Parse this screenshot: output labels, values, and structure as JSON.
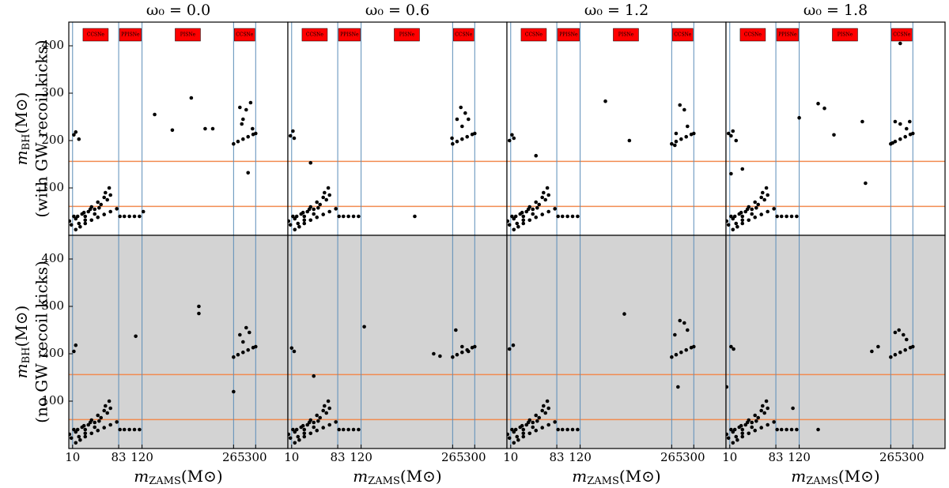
{
  "charts": [
    {
      "type": "scatter",
      "title": "ω₀ = 0.0",
      "background": "#ffffff",
      "point_color": "#000000",
      "ylabel": {
        "main": "m",
        "sub": "BH",
        "unit": "(M⊙)",
        "note": "(with GW recoil kicks)"
      },
      "xlim": [
        4,
        351
      ],
      "ylim": [
        0,
        450
      ],
      "yticks": [
        100,
        200,
        300,
        400
      ],
      "hlines": [
        61,
        156
      ],
      "hline_color": "#f28b50",
      "vlines": [
        10,
        83,
        120,
        265,
        300
      ],
      "vline_color": "#5b8db8",
      "regions": [
        "CCSNe",
        "PPISNe",
        "PISNe",
        "CCSNe"
      ],
      "region_color": "#ff0000",
      "x": [
        5,
        8,
        12,
        15,
        20,
        15,
        22,
        30,
        40,
        50,
        60,
        70,
        80,
        18,
        25,
        30,
        35,
        40,
        45,
        50,
        55,
        60,
        62,
        65,
        68,
        70,
        45,
        30,
        28,
        38,
        52,
        85,
        92,
        100,
        108,
        116,
        265,
        272,
        280,
        288,
        296,
        300,
        12,
        15,
        20,
        140,
        168,
        198,
        220,
        232,
        122,
        275,
        285,
        292,
        280,
        295,
        288,
        278
      ],
      "values": [
        30,
        22,
        40,
        35,
        25,
        12,
        18,
        25,
        32,
        38,
        44,
        50,
        56,
        40,
        45,
        40,
        50,
        60,
        55,
        70,
        65,
        80,
        90,
        75,
        100,
        85,
        45,
        32,
        48,
        55,
        58,
        40,
        40,
        40,
        40,
        40,
        193,
        198,
        203,
        208,
        213,
        215,
        212,
        218,
        203,
        255,
        222,
        290,
        225,
        225,
        50,
        270,
        265,
        280,
        245,
        225,
        132,
        235
      ]
    },
    {
      "type": "scatter",
      "title": "ω₀ = 0.6",
      "background": "#ffffff",
      "point_color": "#000000",
      "xlim": [
        4,
        351
      ],
      "ylim": [
        0,
        450
      ],
      "hlines": [
        61,
        156
      ],
      "hline_color": "#f28b50",
      "vlines": [
        10,
        83,
        120,
        265,
        300
      ],
      "vline_color": "#5b8db8",
      "regions": [
        "CCSNe",
        "PPISNe",
        "PISNe",
        "CCSNe"
      ],
      "region_color": "#ff0000",
      "x": [
        5,
        8,
        12,
        15,
        20,
        15,
        22,
        30,
        40,
        50,
        60,
        70,
        80,
        18,
        25,
        30,
        35,
        40,
        45,
        50,
        55,
        60,
        62,
        65,
        68,
        70,
        45,
        30,
        28,
        38,
        52,
        85,
        92,
        100,
        108,
        116,
        265,
        272,
        280,
        288,
        296,
        300,
        8,
        12,
        14,
        40,
        205,
        264,
        272,
        278,
        285,
        290,
        280
      ],
      "values": [
        30,
        22,
        40,
        35,
        25,
        12,
        18,
        25,
        32,
        38,
        44,
        50,
        56,
        40,
        45,
        40,
        50,
        60,
        55,
        70,
        65,
        80,
        90,
        75,
        100,
        85,
        45,
        32,
        48,
        55,
        58,
        40,
        40,
        40,
        40,
        40,
        193,
        198,
        203,
        208,
        213,
        215,
        210,
        220,
        205,
        153,
        40,
        205,
        245,
        270,
        258,
        245,
        230
      ]
    },
    {
      "type": "scatter",
      "title": "ω₀ = 1.2",
      "background": "#ffffff",
      "point_color": "#000000",
      "xlim": [
        4,
        351
      ],
      "ylim": [
        0,
        450
      ],
      "hlines": [
        61,
        156
      ],
      "hline_color": "#f28b50",
      "vlines": [
        10,
        83,
        120,
        265,
        300
      ],
      "vline_color": "#5b8db8",
      "regions": [
        "CCSNe",
        "PPISNe",
        "PISNe",
        "CCSNe"
      ],
      "region_color": "#ff0000",
      "x": [
        5,
        8,
        12,
        15,
        20,
        15,
        22,
        30,
        40,
        50,
        60,
        70,
        80,
        18,
        25,
        30,
        35,
        40,
        45,
        50,
        55,
        60,
        62,
        65,
        68,
        70,
        45,
        30,
        28,
        38,
        52,
        85,
        92,
        100,
        108,
        116,
        265,
        272,
        280,
        288,
        296,
        300,
        8,
        12,
        15,
        50,
        160,
        198,
        272,
        278,
        285,
        290,
        270
      ],
      "values": [
        30,
        22,
        40,
        35,
        25,
        12,
        18,
        25,
        32,
        38,
        44,
        50,
        56,
        40,
        45,
        40,
        50,
        60,
        55,
        70,
        65,
        80,
        90,
        75,
        100,
        85,
        45,
        32,
        48,
        55,
        58,
        40,
        40,
        40,
        40,
        40,
        193,
        198,
        203,
        208,
        213,
        215,
        200,
        212,
        205,
        168,
        283,
        200,
        215,
        275,
        265,
        230,
        190
      ]
    },
    {
      "type": "scatter",
      "title": "ω₀ = 1.8",
      "background": "#ffffff",
      "point_color": "#000000",
      "xlim": [
        4,
        351
      ],
      "ylim": [
        0,
        450
      ],
      "hlines": [
        61,
        156
      ],
      "hline_color": "#f28b50",
      "vlines": [
        10,
        83,
        120,
        265,
        300
      ],
      "vline_color": "#5b8db8",
      "regions": [
        "CCSNe",
        "PPISNe",
        "PISNe",
        "CCSNe"
      ],
      "region_color": "#ff0000",
      "x": [
        5,
        8,
        12,
        15,
        20,
        15,
        22,
        30,
        40,
        50,
        60,
        70,
        80,
        18,
        25,
        30,
        35,
        40,
        45,
        50,
        55,
        60,
        62,
        65,
        68,
        70,
        45,
        30,
        28,
        38,
        52,
        85,
        92,
        100,
        108,
        116,
        265,
        272,
        280,
        288,
        296,
        300,
        8,
        12,
        15,
        20,
        12,
        30,
        150,
        160,
        175,
        120,
        220,
        225,
        272,
        280,
        290,
        268,
        295,
        280
      ],
      "values": [
        30,
        22,
        40,
        35,
        25,
        12,
        18,
        25,
        32,
        38,
        44,
        50,
        56,
        40,
        45,
        40,
        50,
        60,
        55,
        70,
        65,
        80,
        90,
        75,
        100,
        85,
        45,
        32,
        48,
        55,
        58,
        40,
        40,
        40,
        40,
        40,
        193,
        198,
        203,
        208,
        213,
        215,
        215,
        210,
        220,
        200,
        130,
        140,
        278,
        268,
        212,
        248,
        240,
        110,
        240,
        235,
        225,
        195,
        240,
        405
      ]
    },
    {
      "type": "scatter",
      "background": "#d3d3d3",
      "point_color": "#000000",
      "ylabel": {
        "main": "m",
        "sub": "BH",
        "unit": "(M⊙)",
        "note": "(no GW recoil kicks)"
      },
      "xlabel": {
        "main": "m",
        "sub": "ZAMS",
        "unit": "(M⊙)"
      },
      "xlim": [
        4,
        351
      ],
      "ylim": [
        0,
        450
      ],
      "yticks": [
        100,
        200,
        300,
        400
      ],
      "xticks": [
        10,
        83,
        120,
        265,
        300
      ],
      "hlines": [
        61,
        156
      ],
      "hline_color": "#f28b50",
      "vlines": [
        10,
        83,
        120,
        265,
        300
      ],
      "vline_color": "#5b8db8",
      "x": [
        5,
        8,
        12,
        15,
        20,
        15,
        22,
        30,
        40,
        50,
        60,
        70,
        80,
        18,
        25,
        30,
        35,
        40,
        45,
        50,
        55,
        60,
        62,
        65,
        68,
        70,
        45,
        30,
        28,
        38,
        52,
        85,
        92,
        100,
        108,
        116,
        265,
        272,
        280,
        288,
        296,
        300,
        12,
        15,
        110,
        210,
        210,
        265,
        275,
        285,
        290,
        280
      ],
      "values": [
        30,
        22,
        40,
        35,
        25,
        12,
        18,
        25,
        32,
        38,
        44,
        50,
        56,
        40,
        45,
        40,
        50,
        60,
        55,
        70,
        65,
        80,
        90,
        75,
        100,
        85,
        45,
        32,
        48,
        55,
        58,
        40,
        40,
        40,
        40,
        40,
        193,
        198,
        203,
        208,
        213,
        215,
        205,
        218,
        237,
        300,
        285,
        120,
        240,
        255,
        245,
        225
      ]
    },
    {
      "type": "scatter",
      "background": "#d3d3d3",
      "point_color": "#000000",
      "xlabel": {
        "main": "m",
        "sub": "ZAMS",
        "unit": "(M⊙)"
      },
      "xlim": [
        4,
        351
      ],
      "ylim": [
        0,
        450
      ],
      "xticks": [
        10,
        83,
        120,
        265,
        300
      ],
      "hlines": [
        61,
        156
      ],
      "hline_color": "#f28b50",
      "vlines": [
        10,
        83,
        120,
        265,
        300
      ],
      "vline_color": "#5b8db8",
      "x": [
        5,
        8,
        12,
        15,
        20,
        15,
        22,
        30,
        40,
        50,
        60,
        70,
        80,
        18,
        25,
        30,
        35,
        40,
        45,
        50,
        55,
        60,
        62,
        65,
        68,
        70,
        45,
        30,
        28,
        38,
        52,
        85,
        92,
        100,
        108,
        116,
        265,
        272,
        280,
        288,
        296,
        300,
        10,
        14,
        45,
        125,
        235,
        245,
        270,
        280,
        290
      ],
      "values": [
        30,
        22,
        40,
        35,
        25,
        12,
        18,
        25,
        32,
        38,
        44,
        50,
        56,
        40,
        45,
        40,
        50,
        60,
        55,
        70,
        65,
        80,
        90,
        75,
        100,
        85,
        45,
        32,
        48,
        55,
        58,
        40,
        40,
        40,
        40,
        40,
        193,
        198,
        203,
        208,
        213,
        215,
        212,
        205,
        153,
        257,
        200,
        195,
        250,
        215,
        205
      ]
    },
    {
      "type": "scatter",
      "background": "#d3d3d3",
      "point_color": "#000000",
      "xlabel": {
        "main": "m",
        "sub": "ZAMS",
        "unit": "(M⊙)"
      },
      "xlim": [
        4,
        351
      ],
      "ylim": [
        0,
        450
      ],
      "xticks": [
        10,
        83,
        120,
        265,
        300
      ],
      "hlines": [
        61,
        156
      ],
      "hline_color": "#f28b50",
      "vlines": [
        10,
        83,
        120,
        265,
        300
      ],
      "vline_color": "#5b8db8",
      "x": [
        5,
        8,
        12,
        15,
        20,
        15,
        22,
        30,
        40,
        50,
        60,
        70,
        80,
        18,
        25,
        30,
        35,
        40,
        45,
        50,
        55,
        60,
        62,
        65,
        68,
        70,
        45,
        30,
        28,
        38,
        52,
        85,
        92,
        100,
        108,
        116,
        265,
        272,
        280,
        288,
        296,
        300,
        8,
        14,
        190,
        270,
        278,
        285,
        290,
        275
      ],
      "values": [
        30,
        22,
        40,
        35,
        25,
        12,
        18,
        25,
        32,
        38,
        44,
        50,
        56,
        40,
        45,
        40,
        50,
        60,
        55,
        70,
        65,
        80,
        90,
        75,
        100,
        85,
        45,
        32,
        48,
        55,
        58,
        40,
        40,
        40,
        40,
        40,
        193,
        198,
        203,
        208,
        213,
        215,
        210,
        218,
        284,
        240,
        270,
        265,
        250,
        130
      ]
    },
    {
      "type": "scatter",
      "background": "#d3d3d3",
      "point_color": "#000000",
      "xlabel": {
        "main": "m",
        "sub": "ZAMS",
        "unit": "(M⊙)"
      },
      "xlim": [
        4,
        351
      ],
      "ylim": [
        0,
        450
      ],
      "xticks": [
        10,
        83,
        120,
        265,
        300
      ],
      "hlines": [
        61,
        156
      ],
      "hline_color": "#f28b50",
      "vlines": [
        10,
        83,
        120,
        265,
        300
      ],
      "vline_color": "#5b8db8",
      "x": [
        5,
        8,
        12,
        15,
        20,
        15,
        22,
        30,
        40,
        50,
        60,
        70,
        80,
        18,
        25,
        30,
        35,
        40,
        45,
        50,
        55,
        60,
        62,
        65,
        68,
        70,
        45,
        30,
        28,
        38,
        52,
        85,
        92,
        100,
        108,
        116,
        265,
        272,
        280,
        288,
        296,
        300,
        12,
        16,
        5,
        110,
        150,
        235,
        245,
        272,
        278,
        285,
        290
      ],
      "values": [
        30,
        22,
        40,
        35,
        25,
        12,
        18,
        25,
        32,
        38,
        44,
        50,
        56,
        40,
        45,
        40,
        50,
        60,
        55,
        70,
        65,
        80,
        90,
        75,
        100,
        85,
        45,
        32,
        48,
        55,
        58,
        40,
        40,
        40,
        40,
        40,
        193,
        198,
        203,
        208,
        213,
        215,
        215,
        210,
        130,
        85,
        40,
        205,
        215,
        245,
        250,
        240,
        230
      ]
    }
  ]
}
